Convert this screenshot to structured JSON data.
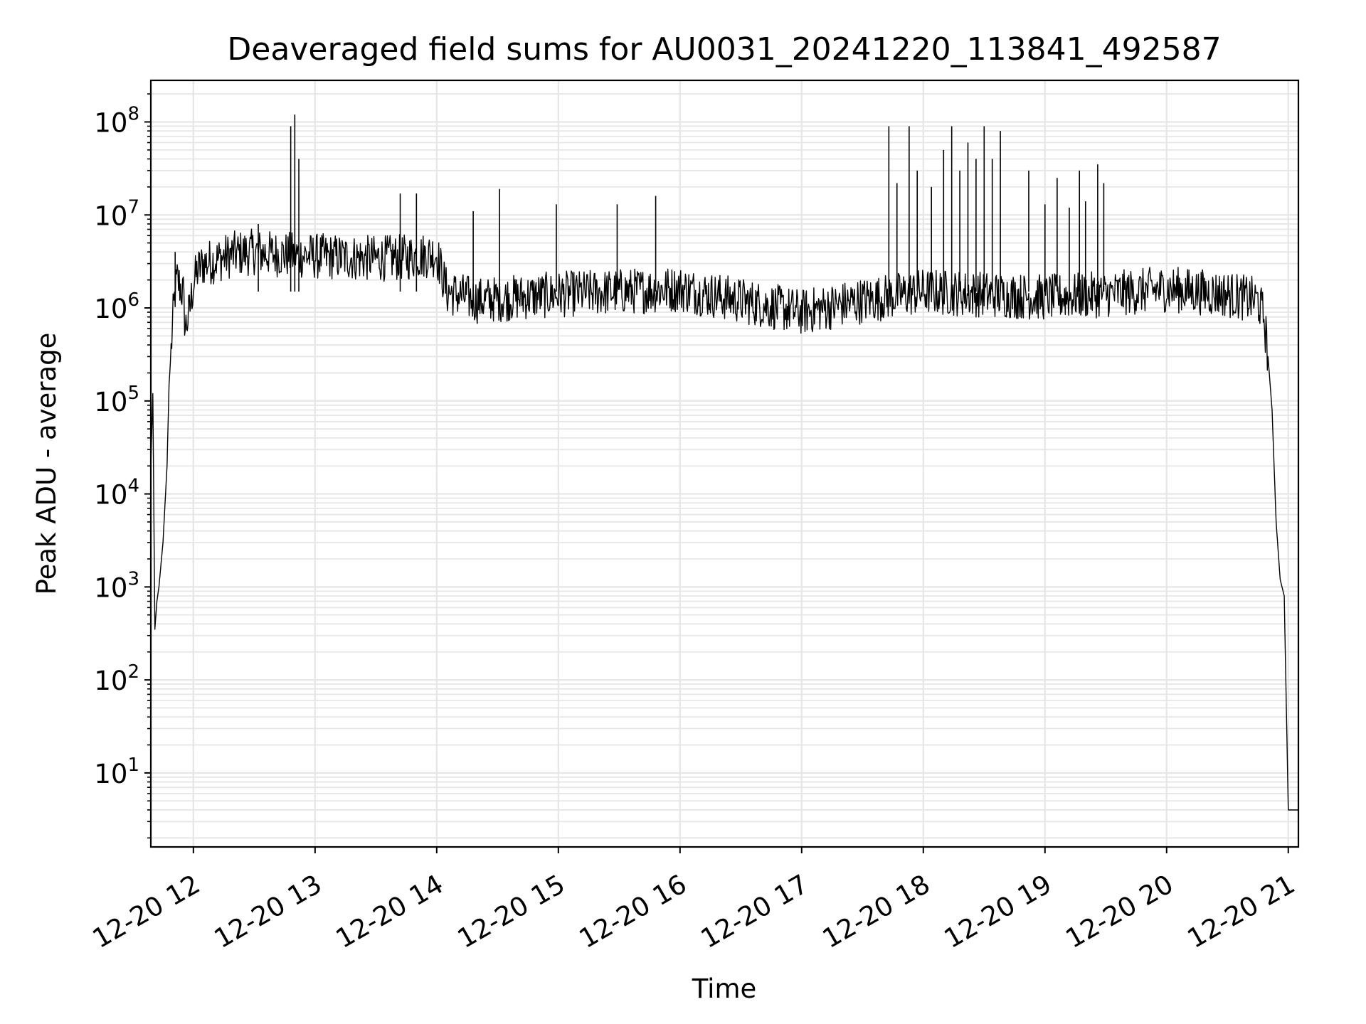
{
  "chart_data": {
    "type": "line",
    "title": "Deaveraged field sums for AU0031_20241220_113841_492587",
    "xlabel": "Time",
    "ylabel": "Peak ADU - average",
    "yscale": "log",
    "ylim": [
      1.6,
      280000000
    ],
    "xlim": [
      "2024-12-20 11:39",
      "2024-12-20 21:05"
    ],
    "grid": "major+minor",
    "line_color": "#000000",
    "grid_color": "#e6e6e6",
    "x_ticks": [
      "12-20 12",
      "12-20 13",
      "12-20 14",
      "12-20 15",
      "12-20 16",
      "12-20 17",
      "12-20 18",
      "12-20 19",
      "12-20 20",
      "12-20 21"
    ],
    "y_ticks": [
      {
        "base": "10",
        "exp": "1"
      },
      {
        "base": "10",
        "exp": "2"
      },
      {
        "base": "10",
        "exp": "3"
      },
      {
        "base": "10",
        "exp": "4"
      },
      {
        "base": "10",
        "exp": "5"
      },
      {
        "base": "10",
        "exp": "6"
      },
      {
        "base": "10",
        "exp": "7"
      },
      {
        "base": "10",
        "exp": "8"
      }
    ],
    "series": [
      {
        "x": [
          "2024-12-20 11:39",
          "2024-12-20 11:40",
          "2024-12-20 11:41",
          "2024-12-20 11:42",
          "2024-12-20 11:43",
          "2024-12-20 11:45",
          "2024-12-20 11:47",
          "2024-12-20 11:48",
          "2024-12-20 11:50",
          "2024-12-20 11:51",
          "2024-12-20 11:52",
          "2024-12-20 11:53",
          "2024-12-20 11:55",
          "2024-12-20 11:56",
          "2024-12-20 11:58",
          "2024-12-20 12:00",
          "2024-12-20 12:02",
          "2024-12-20 12:05",
          "2024-12-20 12:10",
          "2024-12-20 12:15",
          "2024-12-20 12:20",
          "2024-12-20 12:30",
          "2024-12-20 12:40",
          "2024-12-20 12:50",
          "2024-12-20 13:00",
          "2024-12-20 13:15",
          "2024-12-20 13:30",
          "2024-12-20 13:45",
          "2024-12-20 14:00",
          "2024-12-20 14:05",
          "2024-12-20 14:20",
          "2024-12-20 14:40",
          "2024-12-20 15:00",
          "2024-12-20 15:30",
          "2024-12-20 16:00",
          "2024-12-20 16:30",
          "2024-12-20 17:00",
          "2024-12-20 17:30",
          "2024-12-20 18:00",
          "2024-12-20 18:30",
          "2024-12-20 19:00",
          "2024-12-20 19:30",
          "2024-12-20 20:00",
          "2024-12-20 20:30",
          "2024-12-20 20:45",
          "2024-12-20 20:48",
          "2024-12-20 20:50",
          "2024-12-20 20:52",
          "2024-12-20 20:54",
          "2024-12-20 20:56",
          "2024-12-20 20:58",
          "2024-12-20 21:00",
          "2024-12-20 21:01",
          "2024-12-20 21:02",
          "2024-12-20 21:05"
        ],
        "y": [
          20000,
          120000,
          350,
          700,
          1000,
          3000,
          20000,
          150000,
          800000,
          1500000,
          2000000,
          1800000,
          1400000,
          600000,
          900000,
          1800000,
          2500000,
          3000000,
          3200000,
          3500000,
          3800000,
          4000000,
          3800000,
          3700000,
          3600000,
          3500000,
          3400000,
          3500000,
          3800000,
          1500000,
          1200000,
          1300000,
          1400000,
          1500000,
          1600000,
          1200000,
          900000,
          1200000,
          1500000,
          1400000,
          1300000,
          1400000,
          1600000,
          1400000,
          1200000,
          800000,
          300000,
          80000,
          5000,
          1200,
          800,
          4,
          4,
          4,
          4
        ]
      }
    ],
    "spikes": [
      {
        "x": "2024-12-20 11:51",
        "y": 4000000
      },
      {
        "x": "2024-12-20 12:32",
        "y": 8000000
      },
      {
        "x": "2024-12-20 12:48",
        "y": 90000000
      },
      {
        "x": "2024-12-20 12:50",
        "y": 120000000
      },
      {
        "x": "2024-12-20 12:52",
        "y": 40000000
      },
      {
        "x": "2024-12-20 13:42",
        "y": 17000000
      },
      {
        "x": "2024-12-20 13:50",
        "y": 17000000
      },
      {
        "x": "2024-12-20 14:18",
        "y": 11000000
      },
      {
        "x": "2024-12-20 14:31",
        "y": 19000000
      },
      {
        "x": "2024-12-20 14:59",
        "y": 13000000
      },
      {
        "x": "2024-12-20 15:29",
        "y": 13000000
      },
      {
        "x": "2024-12-20 15:48",
        "y": 16000000
      },
      {
        "x": "2024-12-20 17:43",
        "y": 90000000
      },
      {
        "x": "2024-12-20 17:47",
        "y": 22000000
      },
      {
        "x": "2024-12-20 17:53",
        "y": 90000000
      },
      {
        "x": "2024-12-20 17:57",
        "y": 30000000
      },
      {
        "x": "2024-12-20 18:04",
        "y": 20000000
      },
      {
        "x": "2024-12-20 18:10",
        "y": 50000000
      },
      {
        "x": "2024-12-20 18:14",
        "y": 90000000
      },
      {
        "x": "2024-12-20 18:18",
        "y": 30000000
      },
      {
        "x": "2024-12-20 18:22",
        "y": 60000000
      },
      {
        "x": "2024-12-20 18:26",
        "y": 40000000
      },
      {
        "x": "2024-12-20 18:30",
        "y": 90000000
      },
      {
        "x": "2024-12-20 18:34",
        "y": 40000000
      },
      {
        "x": "2024-12-20 18:38",
        "y": 80000000
      },
      {
        "x": "2024-12-20 18:52",
        "y": 30000000
      },
      {
        "x": "2024-12-20 19:00",
        "y": 13000000
      },
      {
        "x": "2024-12-20 19:06",
        "y": 25000000
      },
      {
        "x": "2024-12-20 19:12",
        "y": 12000000
      },
      {
        "x": "2024-12-20 19:17",
        "y": 30000000
      },
      {
        "x": "2024-12-20 19:20",
        "y": 14000000
      },
      {
        "x": "2024-12-20 19:26",
        "y": 35000000
      },
      {
        "x": "2024-12-20 19:29",
        "y": 22000000
      }
    ]
  }
}
